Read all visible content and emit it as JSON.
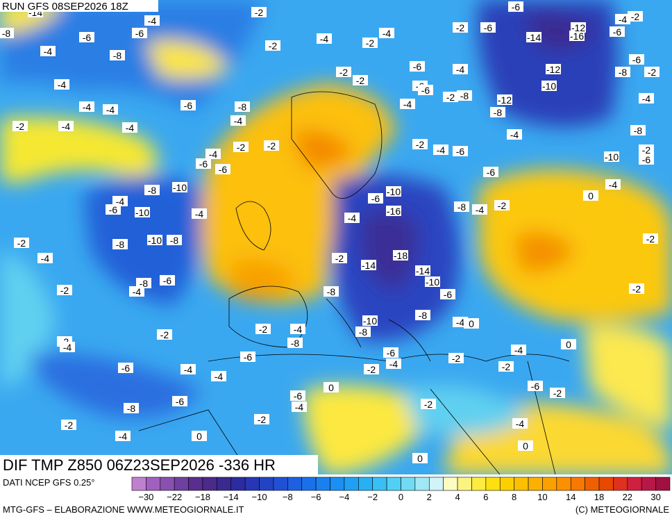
{
  "header": {
    "run": "RUN GFS 08SEP2026 18Z",
    "field": "DIF TMP Z850 06Z23SEP2026 -336 HR"
  },
  "footer": {
    "source": "DATI NCEP GFS 0.25°",
    "credit": "MTG-GFS – ELABORAZIONE WWW.METEOGIORNALE.IT",
    "copyright": "(C) METEOGIORNALE"
  },
  "map_labels": [
    -14,
    -2,
    -6,
    -8,
    -6,
    -6,
    -4,
    -4,
    -8,
    -2,
    -4,
    -2,
    -4,
    -2,
    -6,
    -14,
    -16,
    -12,
    -6,
    -2,
    -4,
    -6,
    -2,
    -8,
    -12,
    -10,
    -12,
    -8,
    -4,
    -8,
    -10,
    -2,
    -6,
    -4,
    -4,
    -4,
    -2,
    -4,
    -4,
    -6,
    -8,
    -4,
    -2,
    -2,
    -6,
    -4,
    -6,
    -2,
    -2,
    -6,
    -2,
    -8,
    -4,
    -2,
    -4,
    -6,
    -4,
    -6,
    -4,
    0,
    -8,
    -4,
    -2,
    -2,
    -10,
    -6,
    -16,
    -4,
    -18,
    -14,
    -14,
    -10,
    -2,
    -6,
    -8,
    -8,
    -4,
    0,
    -10,
    -8,
    -6,
    -4,
    -2,
    -2,
    0,
    -4,
    -2,
    -6,
    -2,
    -2,
    -2,
    -4,
    0,
    0,
    0,
    -8,
    -2,
    -4,
    -2,
    -6,
    -4,
    -4,
    -6,
    -4,
    -6,
    -8,
    -6,
    -2,
    -2,
    -4,
    0,
    -2,
    -4,
    -8,
    -6,
    -2,
    -4,
    -8,
    -10,
    -8,
    -10,
    -6,
    -4,
    -8,
    -10,
    -4,
    -6,
    -4,
    -6,
    -2,
    -4
  ],
  "legend": {
    "ticks": [
      {
        "value": -30,
        "label": "−30"
      },
      {
        "value": -22,
        "label": "−22"
      },
      {
        "value": -18,
        "label": "−18"
      },
      {
        "value": -14,
        "label": "−14"
      },
      {
        "value": -10,
        "label": "−10"
      },
      {
        "value": -8,
        "label": "−8"
      },
      {
        "value": -6,
        "label": "−6"
      },
      {
        "value": -4,
        "label": "−4"
      },
      {
        "value": -2,
        "label": "−2"
      },
      0,
      2,
      4,
      6,
      8,
      10,
      14,
      18,
      22,
      30
    ],
    "colors": [
      "#c080d0",
      "#a060c0",
      "#8a50b0",
      "#7040a0",
      "#5a2e90",
      "#4a2a8a",
      "#3a2a90",
      "#2c2ca0",
      "#2636b4",
      "#2244c4",
      "#2050d4",
      "#1e60e0",
      "#1a70e8",
      "#1a80f0",
      "#1a90f4",
      "#20a0f4",
      "#28b0f4",
      "#38c0f4",
      "#50d0f4",
      "#70dcf4",
      "#a0e8f4",
      "#d0f4f8",
      "#fcfcc0",
      "#fcf480",
      "#fcec40",
      "#fce010",
      "#fcd000",
      "#fcc000",
      "#fcb000",
      "#fca000",
      "#fc9000",
      "#f87800",
      "#f06000",
      "#e84800",
      "#e03020",
      "#d02040",
      "#b81848",
      "#a01040"
    ]
  }
}
